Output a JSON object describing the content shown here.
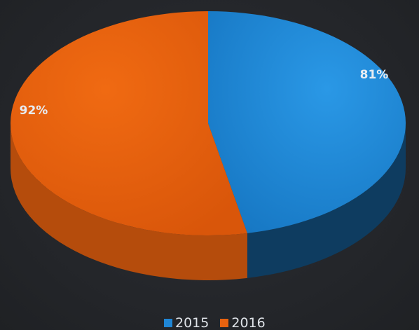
{
  "chart_data": {
    "type": "pie",
    "style": "3d",
    "title": "",
    "categories": [
      "2015",
      "2016"
    ],
    "values": [
      81,
      92
    ],
    "data_labels": [
      "81%",
      "92%"
    ],
    "colors": [
      "#1f86d6",
      "#e8620f"
    ],
    "legend_position": "bottom"
  },
  "legend": {
    "items": [
      {
        "label": "2015",
        "color": "#1f86d6"
      },
      {
        "label": "2016",
        "color": "#e8620f"
      }
    ]
  }
}
